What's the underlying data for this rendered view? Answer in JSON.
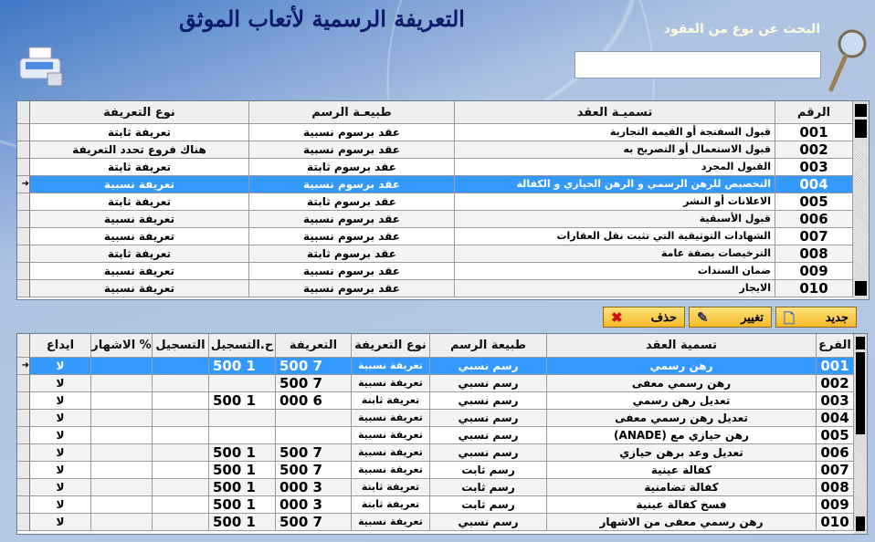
{
  "header": {
    "title": "التعريفة الرسمية لأتعاب الموثق",
    "search_label": "البحث عن نوع من العقود",
    "search_value": "",
    "search_placeholder": ""
  },
  "colors": {
    "selected_row": "#3399ff",
    "title": "#0b1a6b",
    "button": "#f7c13a"
  },
  "contracts_grid": {
    "columns": [
      "الرقم",
      "تسميـة العقد",
      "طبيعـة الرسم",
      "نوع التعريفة"
    ],
    "selected_index": 3,
    "rows": [
      [
        "001",
        "قبول السفتجة أو القيمة التجارية",
        "عقد برسوم نسبية",
        "تعريفة ثابتة"
      ],
      [
        "002",
        "قبول الاستعمال أو التصريح به",
        "عقد برسوم نسبية",
        "هناك فروع تحدد التعريفة"
      ],
      [
        "003",
        "القبول المجرد",
        "عقد برسوم ثابتة",
        "تعريفة ثابتة"
      ],
      [
        "004",
        "التخصيص للرهن الرسمي و الرهن الحيازي و الكفالة",
        "عقد برسوم نسبية",
        "تعريفة نسبية"
      ],
      [
        "005",
        "الاعلانات أو النشر",
        "عقد برسوم ثابتة",
        "تعريفة ثابتة"
      ],
      [
        "006",
        "قبول الأسبقية",
        "عقد برسوم نسبية",
        "تعريفة نسبية"
      ],
      [
        "007",
        "الشهادات التوثيقية التي تثبت نقل العقارات",
        "عقد برسوم نسبية",
        "تعريفة نسبية"
      ],
      [
        "008",
        "الترخيصات بصفة عامة",
        "عقد برسوم ثابتة",
        "تعريفة ثابتة"
      ],
      [
        "009",
        "ضمان السندات",
        "عقد برسوم نسبية",
        "تعريفة نسبية"
      ],
      [
        "010",
        "الايجار",
        "عقد برسوم نسبية",
        "تعريفة نسبية"
      ]
    ]
  },
  "buttons": {
    "new": "جديد",
    "edit": "تغيير",
    "delete": "حذف"
  },
  "branches_grid": {
    "columns": [
      "الفرع",
      "تسمية العقد",
      "طبيعة الرسم",
      "نوع التعريفة",
      "التعريفة",
      "ح.التسجيل",
      "التسجيل",
      "% الاشهار",
      "ايداع"
    ],
    "selected_index": 0,
    "rows": [
      [
        "001",
        "رهن رسمي",
        "رسم نسبي",
        "تعريفة نسبية",
        "7 500",
        "1 500",
        "",
        "",
        "لا"
      ],
      [
        "002",
        "رهن رسمي معفى",
        "رسم نسبي",
        "تعريفة نسبية",
        "7 500",
        "",
        "",
        "",
        "لا"
      ],
      [
        "003",
        "تعديل رهن رسمي",
        "رسم نسبي",
        "تعريفة ثابتة",
        "6 000",
        "1 500",
        "",
        "",
        "لا"
      ],
      [
        "004",
        "تعديل رهن رسمي معفى",
        "رسم نسبي",
        "تعريفة نسبية",
        "",
        "",
        "",
        "",
        "لا"
      ],
      [
        "005",
        "رهن حيازي مع (ANADE)",
        "رسم نسبي",
        "تعريفة نسبية",
        "",
        "",
        "",
        "",
        "لا"
      ],
      [
        "006",
        "تعديل وعد برهن حيازي",
        "رسم نسبي",
        "تعريفة نسبية",
        "7 500",
        "1 500",
        "",
        "",
        "لا"
      ],
      [
        "007",
        "كفالة عينية",
        "رسم ثابت",
        "تعريفة نسبية",
        "7 500",
        "1 500",
        "",
        "",
        "لا"
      ],
      [
        "008",
        "كفالة تضامنية",
        "رسم ثابت",
        "تعريفة ثابتة",
        "3 000",
        "1 500",
        "",
        "",
        "لا"
      ],
      [
        "009",
        "فسخ كفالة عينية",
        "رسم ثابت",
        "تعريفة ثابتة",
        "3 000",
        "1 500",
        "",
        "",
        "لا"
      ],
      [
        "010",
        "رهن رسمي معفى من الاشهار",
        "رسم نسبي",
        "تعريفة نسبية",
        "7 500",
        "1 500",
        "",
        "",
        "لا"
      ]
    ]
  }
}
